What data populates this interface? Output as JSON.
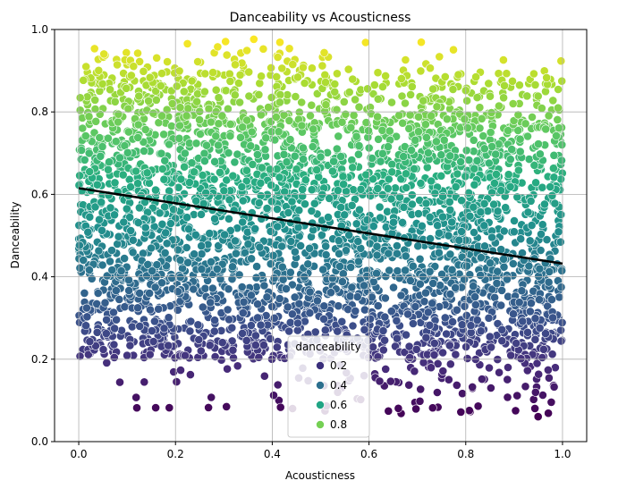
{
  "chart_data": {
    "type": "scatter",
    "title": "Danceability vs Acousticness",
    "xlabel": "Acousticness",
    "ylabel": "Danceability",
    "xlim": [
      -0.05,
      1.05
    ],
    "ylim": [
      0.0,
      1.0
    ],
    "x_ticks": [
      "0.0",
      "0.2",
      "0.4",
      "0.6",
      "0.8",
      "1.0"
    ],
    "y_ticks": [
      "0.0",
      "0.2",
      "0.4",
      "0.6",
      "0.8",
      "1.0"
    ],
    "grid": true,
    "colormap": "viridis",
    "color_range": [
      0.06,
      0.98
    ],
    "point_cloud": {
      "x_range": [
        0.0,
        1.0
      ],
      "y_range": [
        0.06,
        0.98
      ],
      "density": "dense throughout; sparse below 0.2 and above 0.9"
    },
    "trend_line": {
      "x": [
        0.0,
        1.0
      ],
      "y": [
        0.615,
        0.432
      ],
      "color": "#000000"
    },
    "legend": {
      "title": "danceability",
      "placement": "lower center",
      "entries": [
        {
          "label": "0.2",
          "color": "#3b2f7c"
        },
        {
          "label": "0.4",
          "color": "#2c6f8e"
        },
        {
          "label": "0.6",
          "color": "#21a585"
        },
        {
          "label": "0.8",
          "color": "#75d054"
        }
      ]
    }
  }
}
